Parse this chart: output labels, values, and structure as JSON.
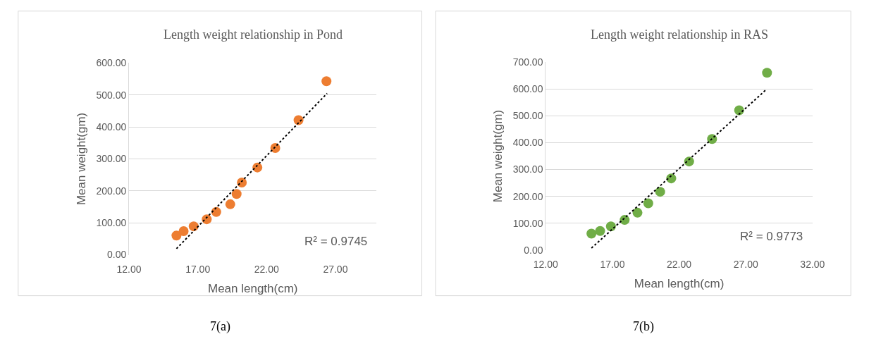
{
  "chart_data": [
    {
      "type": "scatter",
      "title": "Length weight relationship in Pond",
      "xlabel": "Mean length(cm)",
      "ylabel": "Mean weight(gm)",
      "xlim": [
        12,
        30
      ],
      "xticks": [
        {
          "value": 12,
          "label": "12.00"
        },
        {
          "value": 17,
          "label": "17.00"
        },
        {
          "value": 22,
          "label": "22.00"
        },
        {
          "value": 27,
          "label": "27.00"
        }
      ],
      "ylim": [
        0,
        600
      ],
      "yticks": [
        {
          "value": 0,
          "label": "0.00"
        },
        {
          "value": 100,
          "label": "100.00"
        },
        {
          "value": 200,
          "label": "200.00"
        },
        {
          "value": 300,
          "label": "300.00"
        },
        {
          "value": 400,
          "label": "400.00"
        },
        {
          "value": 500,
          "label": "500.00"
        },
        {
          "value": 600,
          "label": "600.00"
        }
      ],
      "grid": "y",
      "marker": "circle",
      "series": [
        {
          "color": "#ed7d31",
          "x": [
            15.45,
            15.97,
            16.7,
            17.65,
            18.34,
            19.36,
            19.82,
            20.2,
            21.33,
            22.63,
            24.32,
            26.35
          ],
          "values": [
            60,
            74,
            89,
            111,
            134,
            158,
            190,
            226,
            273,
            334,
            421,
            543
          ]
        },
        {
          "type": "line",
          "color": "#000000",
          "line_style": "dotted",
          "marker": "none",
          "x": [
            15.45,
            26.4
          ],
          "values": [
            19,
            505
          ]
        }
      ],
      "annotations": [
        "R² = 0.9745",
        "7(a)"
      ]
    },
    {
      "type": "scatter",
      "title": "Length weight relationship in RAS",
      "xlabel": "Mean length(cm)",
      "ylabel": "Mean weight(gm)",
      "xlim": [
        12,
        32
      ],
      "xticks": [
        {
          "value": 12,
          "label": "12.00"
        },
        {
          "value": 17,
          "label": "17.00"
        },
        {
          "value": 22,
          "label": "22.00"
        },
        {
          "value": 27,
          "label": "27.00"
        },
        {
          "value": 32,
          "label": "32.00"
        }
      ],
      "ylim": [
        0,
        700
      ],
      "yticks": [
        {
          "value": 0,
          "label": "0.00"
        },
        {
          "value": 100,
          "label": "100.00"
        },
        {
          "value": 200,
          "label": "200.00"
        },
        {
          "value": 300,
          "label": "300.00"
        },
        {
          "value": 400,
          "label": "400.00"
        },
        {
          "value": 500,
          "label": "500.00"
        },
        {
          "value": 600,
          "label": "600.00"
        },
        {
          "value": 700,
          "label": "700.00"
        }
      ],
      "grid": "y",
      "marker": "circle",
      "series": [
        {
          "color": "#70ad47",
          "x": [
            15.43,
            16.08,
            16.89,
            17.92,
            18.88,
            19.69,
            20.58,
            21.41,
            22.75,
            24.47,
            26.5,
            28.59
          ],
          "values": [
            61,
            71,
            88,
            112,
            139,
            174,
            217,
            267,
            330,
            414,
            521,
            661
          ]
        },
        {
          "type": "line",
          "color": "#000000",
          "line_style": "dotted",
          "marker": "none",
          "x": [
            15.43,
            28.57
          ],
          "values": [
            7,
            600
          ]
        }
      ],
      "annotations": [
        "R² = 0.9773",
        "7(b)"
      ]
    }
  ]
}
